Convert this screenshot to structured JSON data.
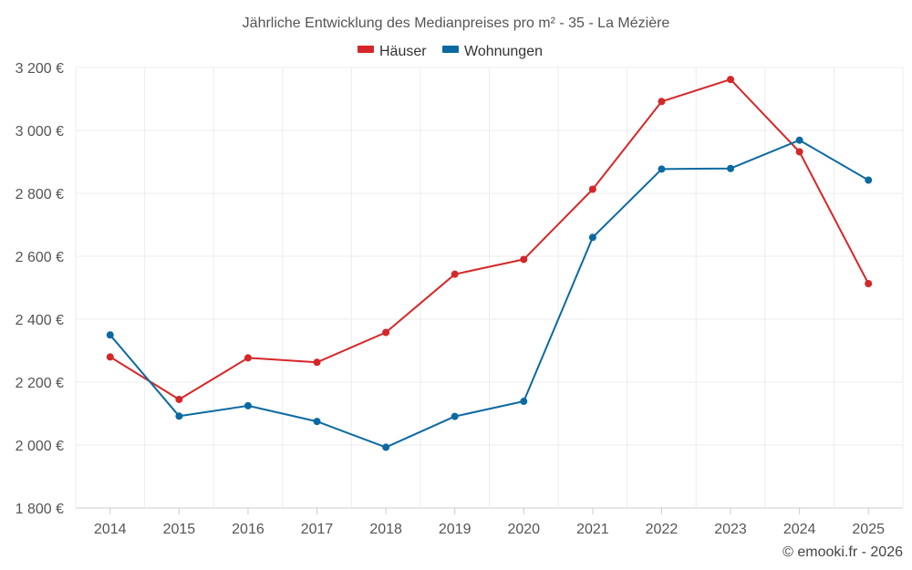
{
  "chart_data": {
    "type": "line",
    "title": "Jährliche Entwicklung des Medianpreises pro m² - 35 - La Mézière",
    "categories": [
      "2014",
      "2015",
      "2016",
      "2017",
      "2018",
      "2019",
      "2020",
      "2021",
      "2022",
      "2023",
      "2024",
      "2025"
    ],
    "series": [
      {
        "name": "Häuser",
        "color": "#d62728",
        "values": [
          2280,
          2145,
          2277,
          2263,
          2358,
          2543,
          2590,
          2813,
          3092,
          3162,
          2932,
          2513
        ]
      },
      {
        "name": "Wohnungen",
        "color": "#0b6aa2",
        "values": [
          2350,
          2092,
          2125,
          2075,
          1993,
          2091,
          2139,
          2660,
          2877,
          2879,
          2969,
          2842
        ]
      }
    ],
    "yticks": [
      1800,
      2000,
      2200,
      2400,
      2600,
      2800,
      3000,
      3200
    ],
    "ytick_labels": [
      "1 800 €",
      "2 000 €",
      "2 200 €",
      "2 400 €",
      "2 600 €",
      "2 800 €",
      "3 000 €",
      "3 200 €"
    ],
    "ylim": [
      1800,
      3200
    ],
    "xlabel": "",
    "ylabel": "",
    "grid": true,
    "legend_position": "top-center",
    "credit": "© emooki.fr - 2026"
  }
}
